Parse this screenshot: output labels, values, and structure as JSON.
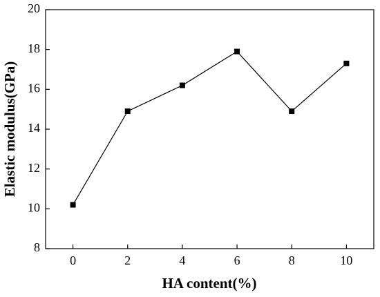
{
  "chart_data": {
    "type": "line",
    "x_label": "HA content(%)",
    "y_label": "Elastic modulus(GPa)",
    "x": [
      0,
      2,
      4,
      6,
      8,
      10
    ],
    "series": [
      {
        "color": "#000000",
        "values": [
          10.2,
          14.9,
          16.2,
          17.9,
          14.9,
          17.3
        ]
      }
    ],
    "xlim": [
      -1,
      11
    ],
    "xticks": [
      0,
      2,
      4,
      6,
      8,
      10
    ],
    "ylim": [
      8,
      20
    ],
    "yticks": [
      8,
      10,
      12,
      14,
      16,
      18,
      20
    ],
    "marker": "square"
  }
}
